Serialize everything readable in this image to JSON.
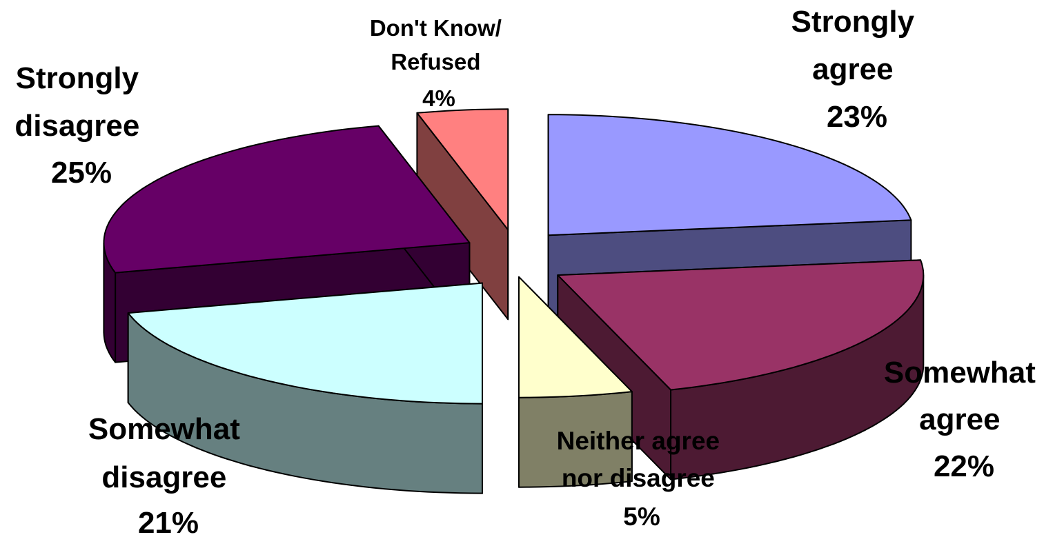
{
  "chart_data": {
    "type": "pie",
    "style": "3d-exploded",
    "slices": [
      {
        "id": "strongly-agree",
        "label_lines": [
          "Strongly",
          "agree",
          "23%"
        ],
        "value": 23,
        "top_color": "#9999FF",
        "side_color": "#4D4D80"
      },
      {
        "id": "somewhat-agree",
        "label_lines": [
          "Somewhat",
          "agree",
          "22%"
        ],
        "value": 22,
        "top_color": "#993366",
        "side_color": "#4D1A33"
      },
      {
        "id": "neither",
        "label_lines": [
          "Neither agree",
          "nor disagree",
          "5%"
        ],
        "value": 5,
        "top_color": "#FFFFCC",
        "side_color": "#808066"
      },
      {
        "id": "somewhat-disagree",
        "label_lines": [
          "Somewhat",
          "disagree",
          "21%"
        ],
        "value": 21,
        "top_color": "#CCFFFF",
        "side_color": "#668080"
      },
      {
        "id": "strongly-disagree",
        "label_lines": [
          "Strongly",
          "disagree",
          "25%"
        ],
        "value": 25,
        "top_color": "#660066",
        "side_color": "#330033"
      },
      {
        "id": "dont-know",
        "label_lines": [
          "Don't Know/",
          "Refused",
          "4%"
        ],
        "value": 4,
        "top_color": "#FF8080",
        "side_color": "#804040"
      }
    ]
  }
}
